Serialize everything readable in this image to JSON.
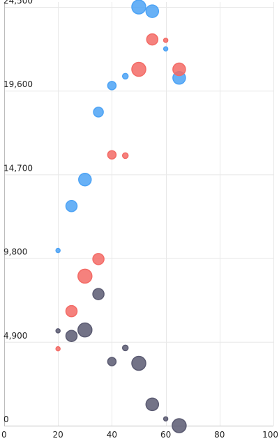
{
  "chart_data": {
    "type": "scatter",
    "title": "",
    "xlabel": "",
    "ylabel": "",
    "xlim": [
      0,
      100
    ],
    "ylim": [
      0,
      24500
    ],
    "x_ticks": [
      0,
      20,
      40,
      60,
      80,
      100
    ],
    "x_tick_labels": [
      "0",
      "20",
      "40",
      "60",
      "80",
      "100"
    ],
    "y_ticks": [
      0,
      4900,
      9800,
      14700,
      19600,
      24500
    ],
    "y_tick_labels": [
      "0",
      "4,900",
      "9,800",
      "14,700",
      "19,600",
      "24,500"
    ],
    "grid": true,
    "legend": "none",
    "series": [
      {
        "color": "#4da3f5",
        "points": [
          {
            "x": 50,
            "y": 24500,
            "r": 10
          },
          {
            "x": 55,
            "y": 24250,
            "r": 9
          },
          {
            "x": 60,
            "y": 22050,
            "r": 3
          },
          {
            "x": 45,
            "y": 20450,
            "r": 4
          },
          {
            "x": 65,
            "y": 20350,
            "r": 9
          },
          {
            "x": 40,
            "y": 19900,
            "r": 6
          },
          {
            "x": 35,
            "y": 18350,
            "r": 7
          },
          {
            "x": 30,
            "y": 14400,
            "r": 9
          },
          {
            "x": 25,
            "y": 12850,
            "r": 8
          },
          {
            "x": 20,
            "y": 10250,
            "r": 3
          }
        ]
      },
      {
        "color": "#f36b66",
        "points": [
          {
            "x": 55,
            "y": 22600,
            "r": 8
          },
          {
            "x": 60,
            "y": 22550,
            "r": 3
          },
          {
            "x": 50,
            "y": 20850,
            "r": 10
          },
          {
            "x": 65,
            "y": 20850,
            "r": 9
          },
          {
            "x": 40,
            "y": 15850,
            "r": 6
          },
          {
            "x": 45,
            "y": 15800,
            "r": 4
          },
          {
            "x": 35,
            "y": 9750,
            "r": 8
          },
          {
            "x": 30,
            "y": 8750,
            "r": 10
          },
          {
            "x": 25,
            "y": 6700,
            "r": 8
          },
          {
            "x": 20,
            "y": 4500,
            "r": 3
          }
        ]
      },
      {
        "color": "#5b5b72",
        "points": [
          {
            "x": 35,
            "y": 7700,
            "r": 8
          },
          {
            "x": 20,
            "y": 5550,
            "r": 3
          },
          {
            "x": 30,
            "y": 5600,
            "r": 10
          },
          {
            "x": 25,
            "y": 5250,
            "r": 8
          },
          {
            "x": 45,
            "y": 4550,
            "r": 4
          },
          {
            "x": 40,
            "y": 3750,
            "r": 6
          },
          {
            "x": 50,
            "y": 3650,
            "r": 10
          },
          {
            "x": 55,
            "y": 1250,
            "r": 9
          },
          {
            "x": 60,
            "y": 400,
            "r": 3
          },
          {
            "x": 65,
            "y": 0,
            "r": 10
          }
        ]
      }
    ]
  }
}
